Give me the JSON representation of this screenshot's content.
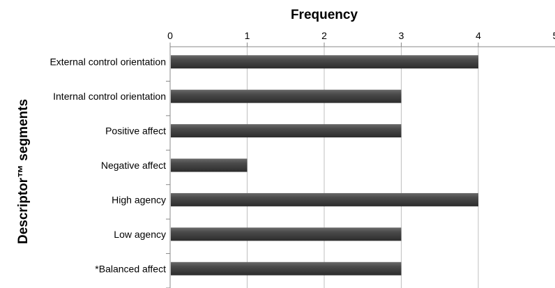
{
  "chart_data": {
    "type": "bar",
    "orientation": "horizontal",
    "xlabel": "Frequency",
    "ylabel": "Descriptor™ segments",
    "xlim": [
      0,
      5
    ],
    "x_ticks": [
      "0",
      "1",
      "2",
      "3",
      "4",
      "5"
    ],
    "x_axis_position": "top",
    "grid": true,
    "legend": "none",
    "categories": [
      "External control orientation",
      "Internal control orientation",
      "Positive affect",
      "Negative affect",
      "High agency",
      "Low agency",
      "*Balanced affect"
    ],
    "values": [
      4,
      3,
      3,
      1,
      4,
      3,
      3
    ],
    "bar_color": "#4a4a4a"
  }
}
